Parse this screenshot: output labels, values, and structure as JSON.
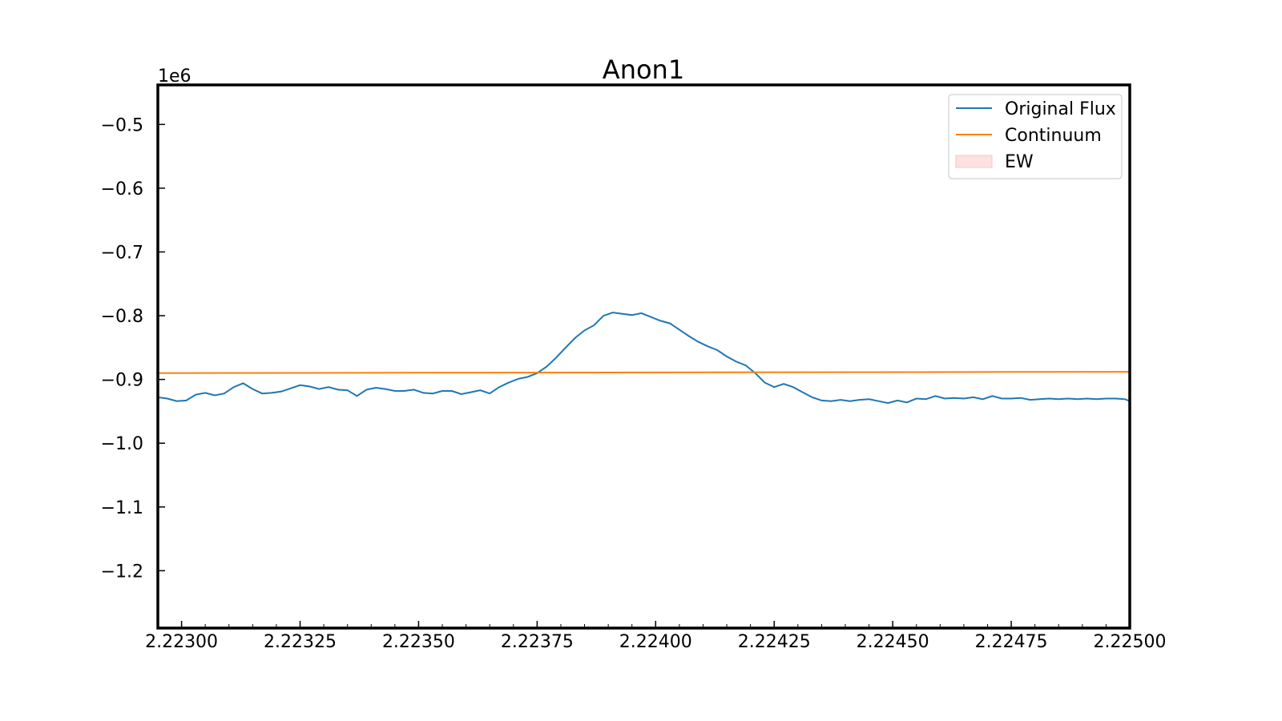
{
  "chart_data": {
    "type": "line",
    "title": "Anon1",
    "xlabel": "",
    "ylabel": "",
    "y_scale_label": "1e6",
    "xlim": [
      2.22295,
      2.225
    ],
    "ylim": [
      -1.29,
      -0.438
    ],
    "x_ticks": [
      2.223,
      2.22325,
      2.2235,
      2.22375,
      2.224,
      2.22425,
      2.2245,
      2.22475,
      2.225
    ],
    "x_tick_labels": [
      "2.22300",
      "2.22325",
      "2.22350",
      "2.22375",
      "2.22400",
      "2.22425",
      "2.22450",
      "2.22475",
      "2.22500"
    ],
    "y_ticks": [
      -0.5,
      -0.6,
      -0.7,
      -0.8,
      -0.9,
      -1.0,
      -1.1,
      -1.2
    ],
    "y_tick_labels": [
      "−0.5",
      "−0.6",
      "−0.7",
      "−0.8",
      "−0.9",
      "−1.0",
      "−1.1",
      "−1.2"
    ],
    "legend": {
      "location": "upper right",
      "entries": [
        {
          "label": "Original Flux",
          "kind": "line",
          "color": "#1f77b4"
        },
        {
          "label": "Continuum",
          "kind": "line",
          "color": "#ff7f0e"
        },
        {
          "label": "EW",
          "kind": "patch",
          "color": "#fde0e0"
        }
      ]
    },
    "series": [
      {
        "name": "Original Flux",
        "color": "#1f77b4",
        "x": [
          2.22295,
          2.22297,
          2.22299,
          2.22301,
          2.22303,
          2.22305,
          2.22307,
          2.22309,
          2.22311,
          2.22313,
          2.22315,
          2.22317,
          2.22319,
          2.22321,
          2.22323,
          2.22325,
          2.22327,
          2.22329,
          2.22331,
          2.22333,
          2.22335,
          2.22337,
          2.22339,
          2.22341,
          2.22343,
          2.22345,
          2.22347,
          2.22349,
          2.22351,
          2.22353,
          2.22355,
          2.22357,
          2.22359,
          2.22361,
          2.22363,
          2.22365,
          2.22367,
          2.22369,
          2.22371,
          2.22373,
          2.22375,
          2.22377,
          2.22379,
          2.22381,
          2.22383,
          2.22385,
          2.22387,
          2.22389,
          2.22391,
          2.22393,
          2.22395,
          2.22397,
          2.22399,
          2.22401,
          2.22403,
          2.22405,
          2.22407,
          2.22409,
          2.22411,
          2.22413,
          2.22415,
          2.22417,
          2.22419,
          2.22421,
          2.22423,
          2.22425,
          2.22427,
          2.22429,
          2.22431,
          2.22433,
          2.22435,
          2.22437,
          2.22439,
          2.22441,
          2.22443,
          2.22445,
          2.22447,
          2.22449,
          2.22451,
          2.22453,
          2.22455,
          2.22457,
          2.22459,
          2.22461,
          2.22463,
          2.22465,
          2.22467,
          2.22469,
          2.22471,
          2.22473,
          2.22475,
          2.22477,
          2.22479,
          2.22481,
          2.22483,
          2.22485,
          2.22487,
          2.22489,
          2.22491,
          2.22493,
          2.22495,
          2.22497,
          2.22499,
          2.225
        ],
        "y": [
          -0.928,
          -0.93,
          -0.934,
          -0.933,
          -0.924,
          -0.921,
          -0.925,
          -0.922,
          -0.912,
          -0.906,
          -0.915,
          -0.922,
          -0.921,
          -0.919,
          -0.914,
          -0.909,
          -0.911,
          -0.915,
          -0.912,
          -0.916,
          -0.917,
          -0.926,
          -0.916,
          -0.913,
          -0.915,
          -0.918,
          -0.918,
          -0.916,
          -0.921,
          -0.922,
          -0.918,
          -0.918,
          -0.923,
          -0.92,
          -0.917,
          -0.922,
          -0.912,
          -0.905,
          -0.899,
          -0.896,
          -0.89,
          -0.88,
          -0.866,
          -0.85,
          -0.835,
          -0.823,
          -0.815,
          -0.8,
          -0.795,
          -0.797,
          -0.799,
          -0.796,
          -0.802,
          -0.808,
          -0.812,
          -0.822,
          -0.832,
          -0.841,
          -0.848,
          -0.854,
          -0.864,
          -0.872,
          -0.878,
          -0.89,
          -0.905,
          -0.912,
          -0.907,
          -0.912,
          -0.92,
          -0.928,
          -0.933,
          -0.934,
          -0.932,
          -0.934,
          -0.932,
          -0.931,
          -0.934,
          -0.937,
          -0.933,
          -0.936,
          -0.93,
          -0.931,
          -0.926,
          -0.93,
          -0.929,
          -0.93,
          -0.928,
          -0.931,
          -0.926,
          -0.93,
          -0.93,
          -0.929,
          -0.932,
          -0.931,
          -0.93,
          -0.931,
          -0.93,
          -0.931,
          -0.93,
          -0.931,
          -0.93,
          -0.93,
          -0.931,
          -0.934
        ]
      },
      {
        "name": "Continuum",
        "color": "#ff7f0e",
        "x": [
          2.22295,
          2.225
        ],
        "y": [
          -0.89,
          -0.888
        ]
      }
    ]
  }
}
